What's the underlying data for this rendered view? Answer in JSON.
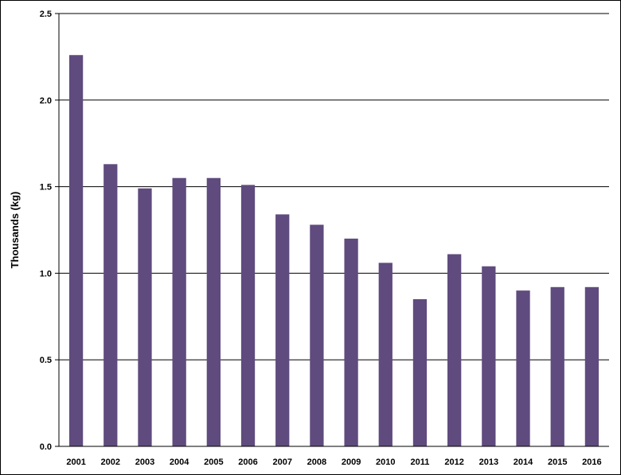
{
  "chart_data": {
    "type": "bar",
    "title": "",
    "xlabel": "",
    "ylabel": "Thousands (kg)",
    "categories": [
      "2001",
      "2002",
      "2003",
      "2004",
      "2005",
      "2006",
      "2007",
      "2008",
      "2009",
      "2010",
      "2011",
      "2012",
      "2013",
      "2014",
      "2015",
      "2016"
    ],
    "series": [
      {
        "values": [
          2.26,
          1.63,
          1.49,
          1.55,
          1.55,
          1.51,
          1.34,
          1.28,
          1.2,
          1.06,
          0.85,
          1.11,
          1.04,
          0.9,
          0.92,
          0.92
        ],
        "color": "#5F4B7E"
      }
    ],
    "ylim": [
      0,
      2.5
    ],
    "yticks": [
      "0.0",
      "0.5",
      "1.0",
      "1.5",
      "2.0",
      "2.5"
    ],
    "grid": "horizontal",
    "legend": "none"
  }
}
